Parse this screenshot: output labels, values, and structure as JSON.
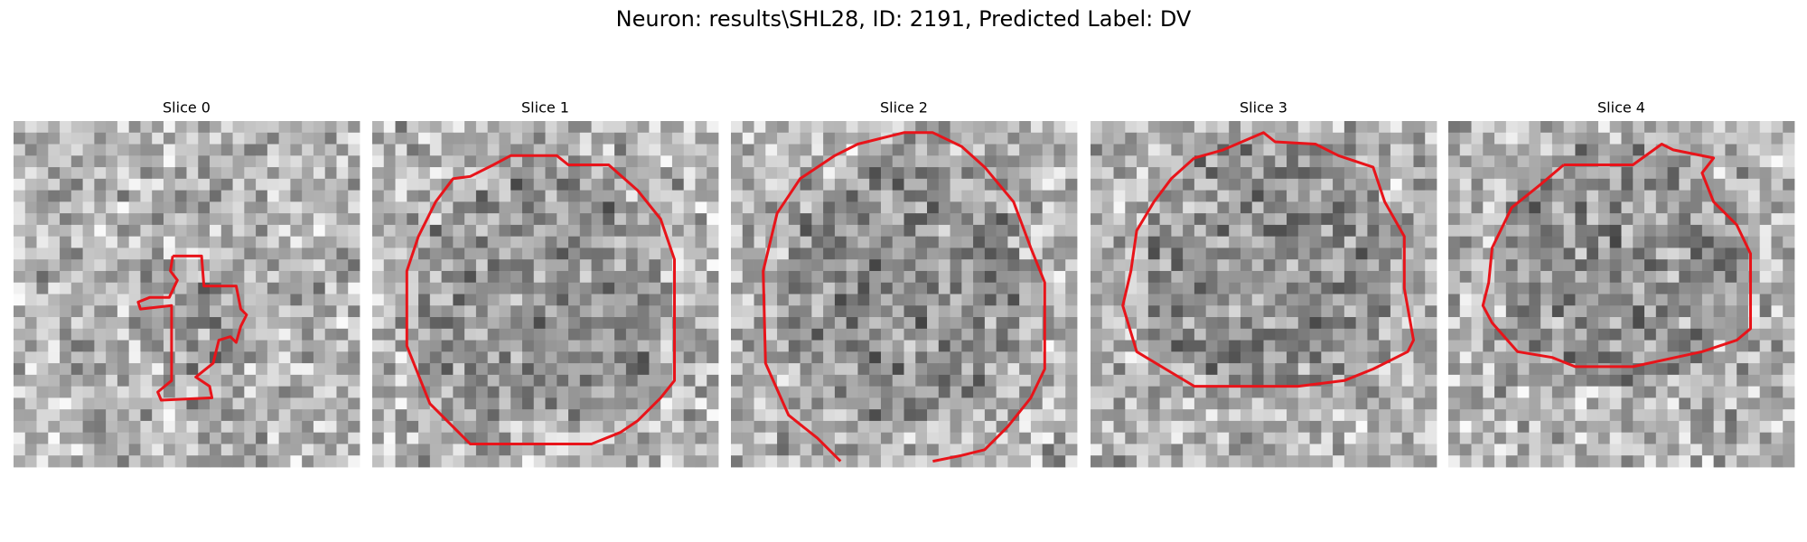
{
  "title": "Neuron: results\\SHL28, ID: 2191, Predicted Label: DV",
  "panels": [
    {
      "title": "Slice 0"
    },
    {
      "title": "Slice 1"
    },
    {
      "title": "Slice 2"
    },
    {
      "title": "Slice 3"
    },
    {
      "title": "Slice 4"
    }
  ]
}
